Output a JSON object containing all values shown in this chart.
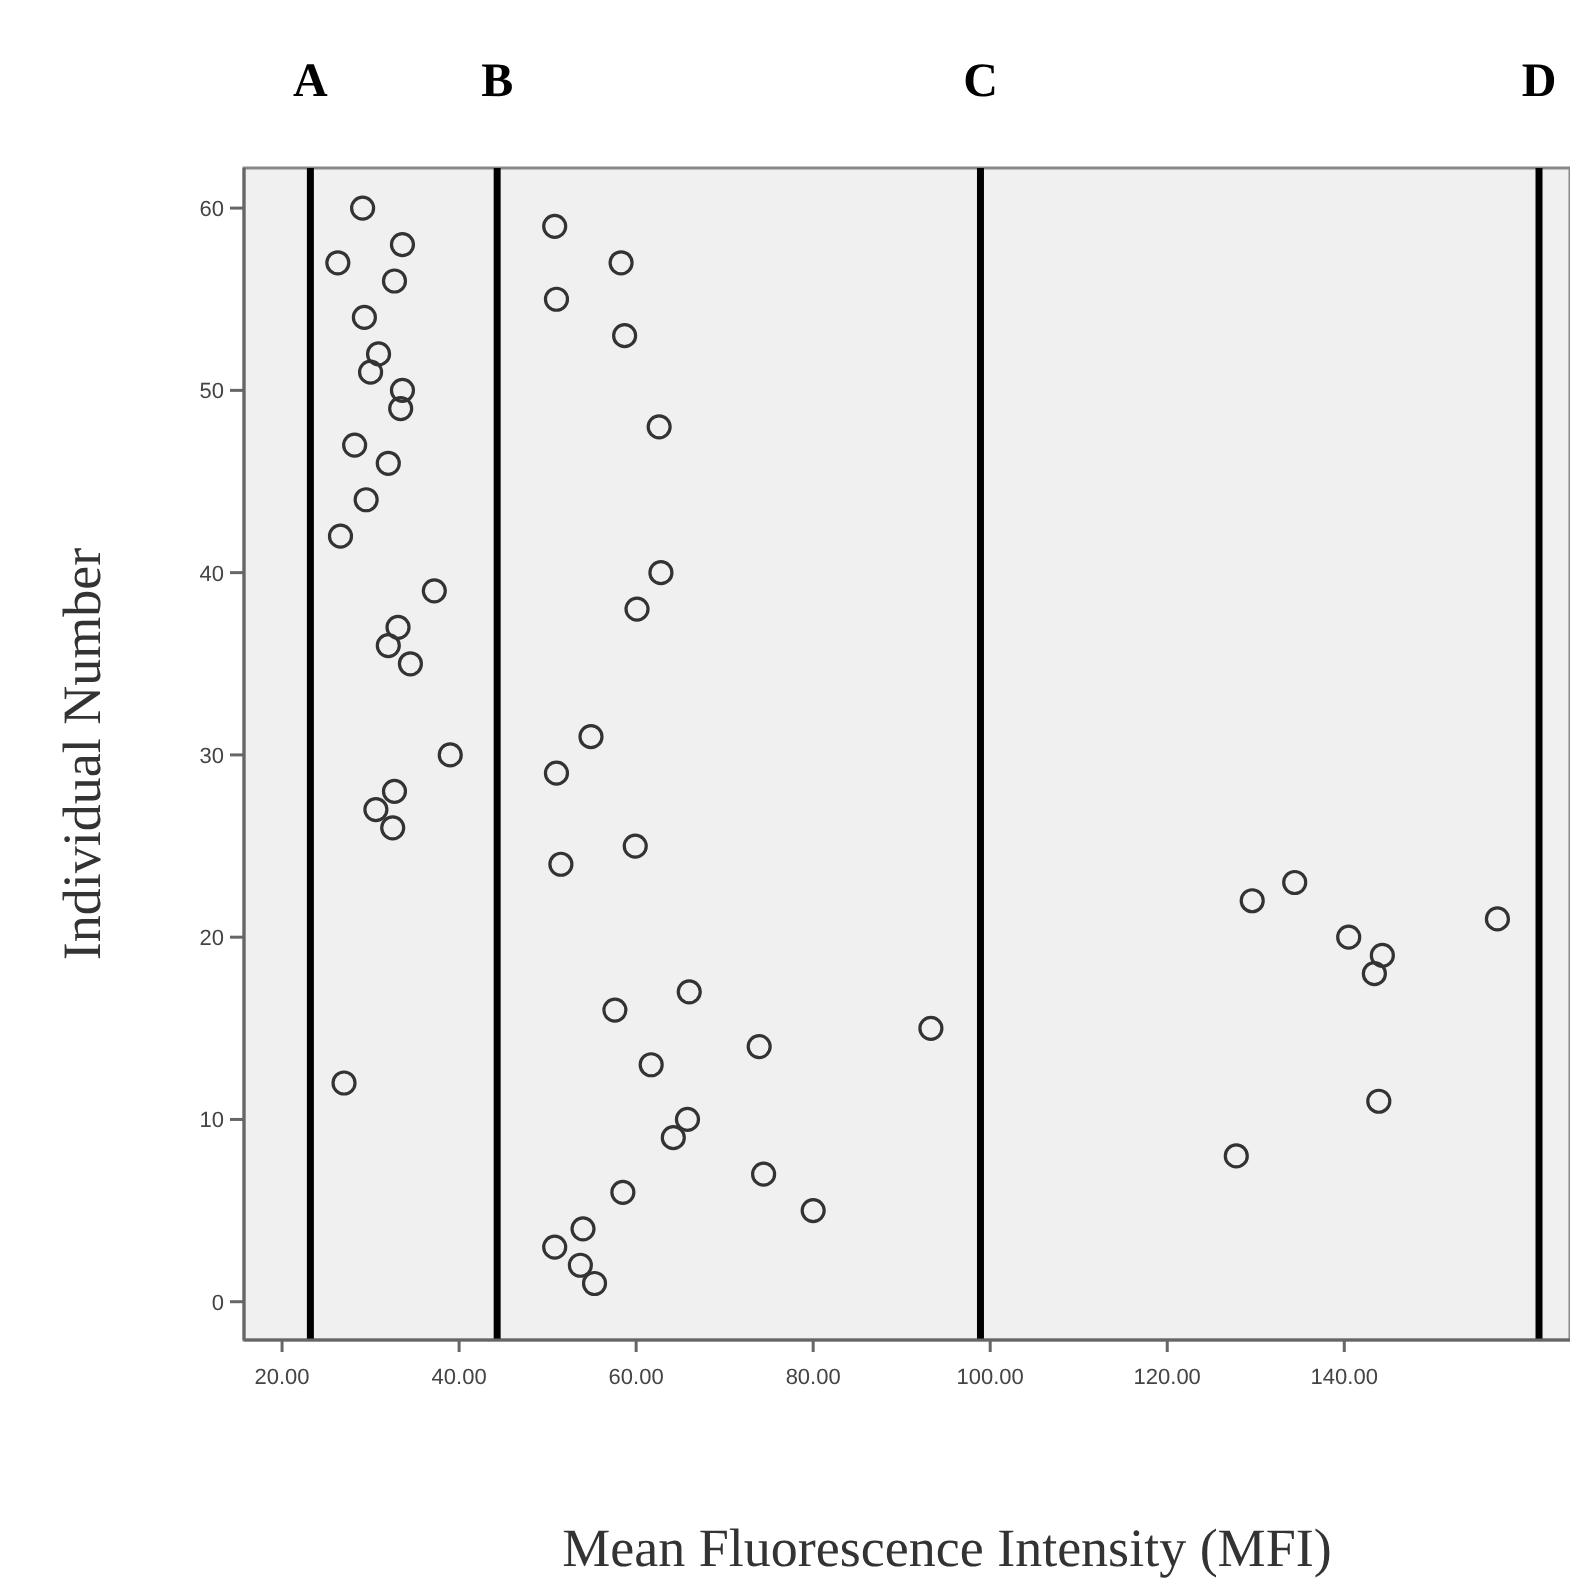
{
  "chart_data": {
    "type": "scatter",
    "xlabel": "Mean Fluorescence Intensity (MFI)",
    "ylabel": "Individual Number",
    "xlim": [
      15.7,
      165.5
    ],
    "ylim": [
      -2.1,
      62.2
    ],
    "xticks": [
      {
        "value": 20,
        "label": "20.00"
      },
      {
        "value": 40,
        "label": "40.00"
      },
      {
        "value": 60,
        "label": "60.00"
      },
      {
        "value": 80,
        "label": "80.00"
      },
      {
        "value": 100,
        "label": "100.00"
      },
      {
        "value": 120,
        "label": "120.00"
      },
      {
        "value": 140,
        "label": "140.00"
      }
    ],
    "yticks": [
      0,
      10,
      20,
      30,
      40,
      50,
      60
    ],
    "grid": false,
    "marker": "circle",
    "series": [
      {
        "color": "#333333",
        "x": [
          29.1,
          26.3,
          33.6,
          32.7,
          29.3,
          30.9,
          30.0,
          33.6,
          33.4,
          28.2,
          32.0,
          29.5,
          26.6,
          37.2,
          33.1,
          32.0,
          34.5,
          39.0,
          32.7,
          30.6,
          32.5,
          27.0,
          50.8,
          58.3,
          51.0,
          58.7,
          62.6,
          62.8,
          60.1,
          54.9,
          51.0,
          59.9,
          51.5,
          66.0,
          57.6,
          93.3,
          73.9,
          61.7,
          65.8,
          64.2,
          74.4,
          58.5,
          80.0,
          54.0,
          50.8,
          53.7,
          55.3,
          134.4,
          129.6,
          140.5,
          144.3,
          143.4,
          157.3,
          143.9,
          127.8
        ],
        "values": [
          60,
          57,
          58,
          56,
          54,
          52,
          51,
          50,
          49,
          47,
          46,
          44,
          42,
          39,
          37,
          36,
          35,
          30,
          28,
          27,
          26,
          12,
          59,
          57,
          55,
          53,
          48,
          40,
          38,
          31,
          29,
          25,
          24,
          17,
          16,
          15,
          14,
          13,
          10,
          9,
          7,
          6,
          5,
          4,
          3,
          2,
          1,
          23,
          22,
          20,
          19,
          18,
          21,
          11,
          8
        ]
      }
    ],
    "ref_lines": [
      {
        "axis": "x",
        "value": 23.2,
        "label": "A",
        "color": "#000000"
      },
      {
        "axis": "x",
        "value": 44.3,
        "label": "B",
        "color": "#000000"
      },
      {
        "axis": "x",
        "value": 98.9,
        "label": "C",
        "color": "#000000"
      },
      {
        "axis": "x",
        "value": 162.0,
        "label": "D",
        "color": "#000000"
      }
    ]
  }
}
